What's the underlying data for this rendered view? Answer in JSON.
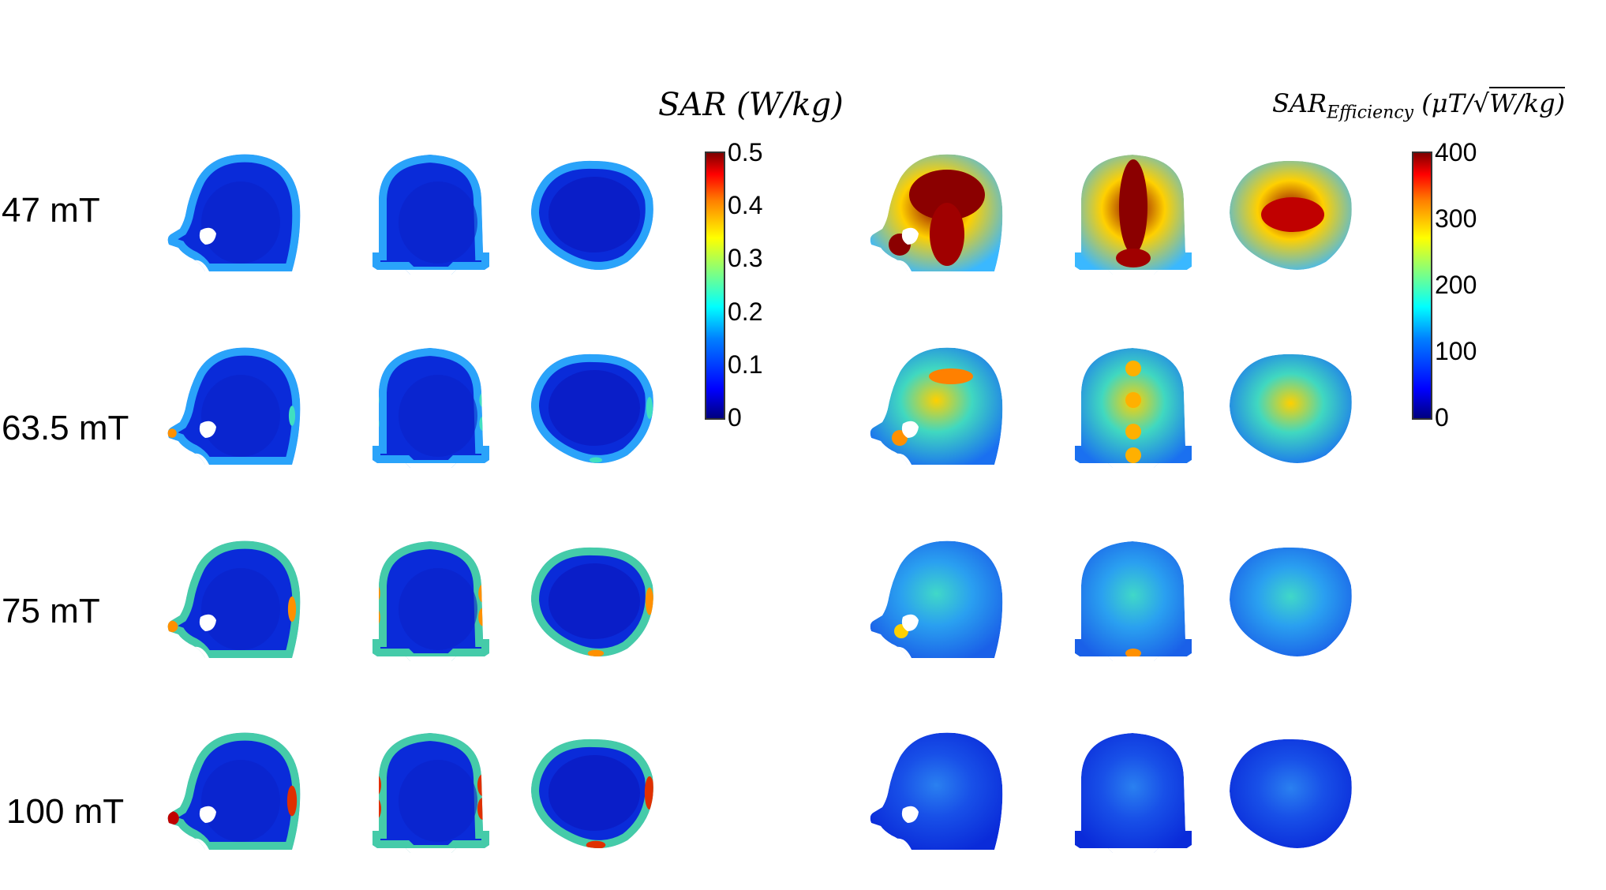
{
  "rows": [
    {
      "label": "47 mT"
    },
    {
      "label": "63.5 mT"
    },
    {
      "label": "75 mT"
    },
    {
      "label": "100 mT"
    }
  ],
  "colorbars": {
    "sar": {
      "title_main": "SAR",
      "title_unit": "(W/kg)",
      "ticks": [
        "0.5",
        "0.4",
        "0.3",
        "0.2",
        "0.1",
        "0"
      ]
    },
    "efficiency": {
      "title_main": "SAR",
      "title_sub": "Efficiency",
      "title_unit_a": "(μT/",
      "title_unit_b": "W/kg)",
      "ticks": [
        "400",
        "300",
        "200",
        "100",
        "0"
      ]
    }
  },
  "colors": {
    "background_blue": "#0a2bd9",
    "colormap": [
      "#00007f",
      "#0000ff",
      "#0080ff",
      "#00ffff",
      "#80ff80",
      "#ffff00",
      "#ff8000",
      "#ff0000",
      "#7f0000"
    ]
  },
  "intensity": {
    "sar": [
      0.15,
      0.3,
      0.55,
      0.8
    ],
    "efficiency": [
      1.0,
      0.65,
      0.4,
      0.15
    ]
  }
}
